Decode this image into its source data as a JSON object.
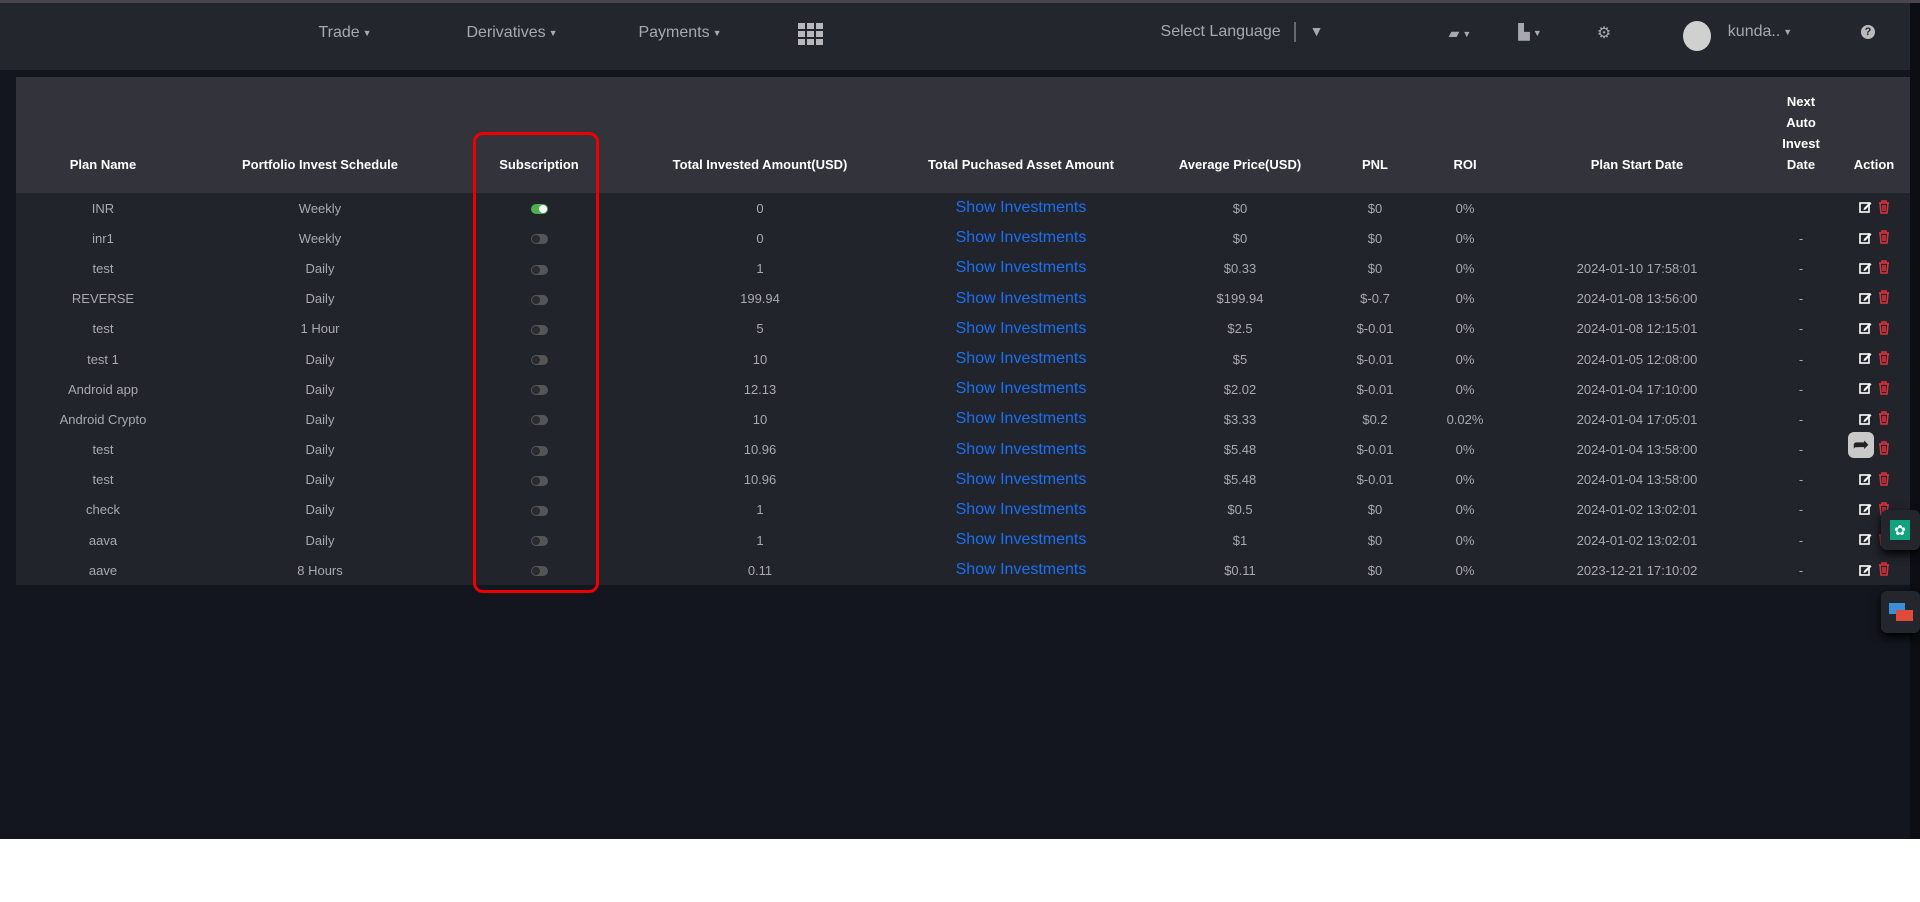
{
  "nav": {
    "items": [
      {
        "label": "Trade"
      },
      {
        "label": "Derivatives"
      },
      {
        "label": "Payments"
      }
    ],
    "apps_icon": "grid-icon",
    "language": "Select Language",
    "user": "kunda..",
    "icons": [
      "book-icon",
      "bag-icon",
      "gear-icon",
      "help-icon"
    ]
  },
  "table": {
    "headers": [
      "Plan Name",
      "Portfolio Invest Schedule",
      "Subscription",
      "Total Invested Amount(USD)",
      "Total Puchased Asset Amount",
      "Average Price(USD)",
      "PNL",
      "ROI",
      "Plan Start Date",
      "Next Auto Invest Date",
      "Action"
    ],
    "link_label": "Show Investments",
    "rows": [
      {
        "name": "INR",
        "schedule": "Weekly",
        "on": true,
        "invested": "0",
        "avg": "$0",
        "pnl": "$0",
        "roi": "0%",
        "start": "",
        "next": ""
      },
      {
        "name": "inr1",
        "schedule": "Weekly",
        "on": false,
        "invested": "0",
        "avg": "$0",
        "pnl": "$0",
        "roi": "0%",
        "start": "",
        "next": "-"
      },
      {
        "name": "test",
        "schedule": "Daily",
        "on": false,
        "invested": "1",
        "avg": "$0.33",
        "pnl": "$0",
        "roi": "0%",
        "start": "2024-01-10 17:58:01",
        "next": "-"
      },
      {
        "name": "REVERSE",
        "schedule": "Daily",
        "on": false,
        "invested": "199.94",
        "avg": "$199.94",
        "pnl": "$-0.7",
        "roi": "0%",
        "start": "2024-01-08 13:56:00",
        "next": "-"
      },
      {
        "name": "test",
        "schedule": "1 Hour",
        "on": false,
        "invested": "5",
        "avg": "$2.5",
        "pnl": "$-0.01",
        "roi": "0%",
        "start": "2024-01-08 12:15:01",
        "next": "-"
      },
      {
        "name": "test 1",
        "schedule": "Daily",
        "on": false,
        "invested": "10",
        "avg": "$5",
        "pnl": "$-0.01",
        "roi": "0%",
        "start": "2024-01-05 12:08:00",
        "next": "-"
      },
      {
        "name": "Android app",
        "schedule": "Daily",
        "on": false,
        "invested": "12.13",
        "avg": "$2.02",
        "pnl": "$-0.01",
        "roi": "0%",
        "start": "2024-01-04 17:10:00",
        "next": "-"
      },
      {
        "name": "Android Crypto",
        "schedule": "Daily",
        "on": false,
        "invested": "10",
        "avg": "$3.33",
        "pnl": "$0.2",
        "roi": "0.02%",
        "start": "2024-01-04 17:05:01",
        "next": "-"
      },
      {
        "name": "test",
        "schedule": "Daily",
        "on": false,
        "invested": "10.96",
        "avg": "$5.48",
        "pnl": "$-0.01",
        "roi": "0%",
        "start": "2024-01-04 13:58:00",
        "next": "-"
      },
      {
        "name": "test",
        "schedule": "Daily",
        "on": false,
        "invested": "10.96",
        "avg": "$5.48",
        "pnl": "$-0.01",
        "roi": "0%",
        "start": "2024-01-04 13:58:00",
        "next": "-"
      },
      {
        "name": "check",
        "schedule": "Daily",
        "on": false,
        "invested": "1",
        "avg": "$0.5",
        "pnl": "$0",
        "roi": "0%",
        "start": "2024-01-02 13:02:01",
        "next": "-"
      },
      {
        "name": "aava",
        "schedule": "Daily",
        "on": false,
        "invested": "1",
        "avg": "$1",
        "pnl": "$0",
        "roi": "0%",
        "start": "2024-01-02 13:02:01",
        "next": "-"
      },
      {
        "name": "aave",
        "schedule": "8 Hours",
        "on": false,
        "invested": "0.11",
        "avg": "$0.11",
        "pnl": "$0",
        "roi": "0%",
        "start": "2023-12-21 17:10:02",
        "next": "-"
      }
    ]
  },
  "colors": {
    "toggle_on": "#4caf50",
    "link": "#1a6ff2",
    "delete": "#e0323c",
    "highlight": "#ee0000"
  }
}
